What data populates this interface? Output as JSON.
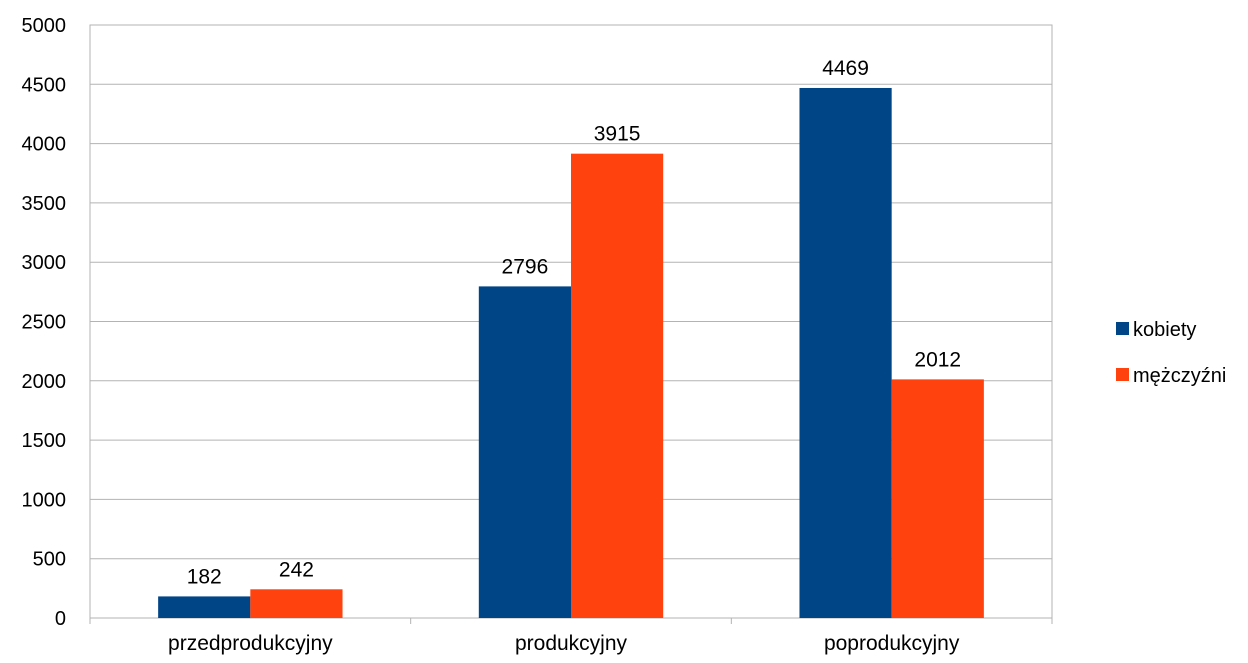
{
  "chart_data": {
    "type": "bar",
    "title": "",
    "xlabel": "",
    "ylabel": "",
    "categories": [
      "przedprodukcyjny",
      "produkcyjny",
      "poprodukcyjny"
    ],
    "series": [
      {
        "name": "kobiety",
        "color": "#004586",
        "values": [
          182,
          2796,
          4469
        ]
      },
      {
        "name": "mężczyźni",
        "color": "#ff420e",
        "values": [
          242,
          3915,
          2012
        ]
      }
    ],
    "ylim": [
      0,
      5000
    ],
    "yticks": [
      0,
      500,
      1000,
      1500,
      2000,
      2500,
      3000,
      3500,
      4000,
      4500,
      5000
    ],
    "grid": true,
    "legend_position": "right"
  }
}
